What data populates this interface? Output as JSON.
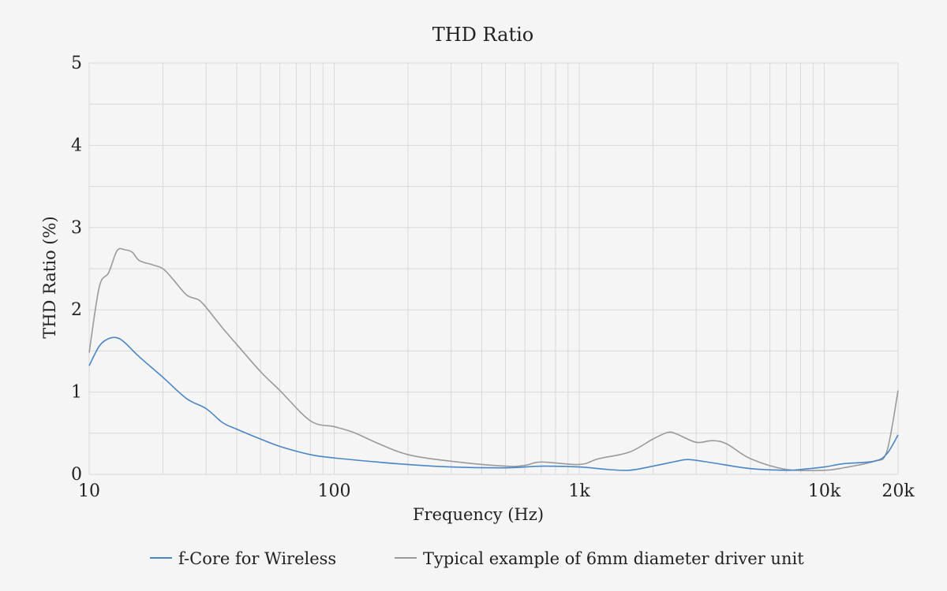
{
  "chart_data": {
    "type": "line",
    "title": "THD Ratio",
    "xlabel": "Frequency (Hz)",
    "ylabel": "THD Ratio (%)",
    "xscale": "log",
    "xlim": [
      10,
      20000
    ],
    "ylim": [
      0,
      5
    ],
    "grid": true,
    "legend_position": "bottom",
    "x_ticks": [
      {
        "value": 10,
        "label": "10"
      },
      {
        "value": 100,
        "label": "100"
      },
      {
        "value": 1000,
        "label": "1k"
      },
      {
        "value": 10000,
        "label": "10k"
      },
      {
        "value": 20000,
        "label": "20k"
      }
    ],
    "y_ticks": [
      {
        "value": 0,
        "label": "0"
      },
      {
        "value": 1,
        "label": "1"
      },
      {
        "value": 2,
        "label": "2"
      },
      {
        "value": 3,
        "label": "3"
      },
      {
        "value": 4,
        "label": "4"
      },
      {
        "value": 5,
        "label": "5"
      }
    ],
    "series": [
      {
        "name": "f-Core for Wireless",
        "color": "#4a86c5",
        "x": [
          10,
          11,
          12,
          13,
          14,
          16,
          20,
          25,
          30,
          35,
          40,
          50,
          60,
          80,
          100,
          150,
          200,
          300,
          500,
          700,
          1000,
          1300,
          1600,
          2000,
          2500,
          2800,
          3500,
          5000,
          7000,
          8000,
          10000,
          12000,
          16000,
          18000,
          20000
        ],
        "values": [
          1.32,
          1.56,
          1.65,
          1.66,
          1.6,
          1.43,
          1.18,
          0.92,
          0.8,
          0.63,
          0.55,
          0.43,
          0.34,
          0.24,
          0.2,
          0.15,
          0.12,
          0.09,
          0.08,
          0.1,
          0.09,
          0.06,
          0.05,
          0.1,
          0.16,
          0.18,
          0.14,
          0.07,
          0.05,
          0.06,
          0.09,
          0.13,
          0.16,
          0.25,
          0.48
        ]
      },
      {
        "name": "Typical example of 6mm diameter driver unit",
        "color": "#9a9a9a",
        "x": [
          10,
          11,
          12,
          13,
          14,
          15,
          16,
          18,
          20,
          22,
          25,
          28,
          30,
          35,
          40,
          50,
          60,
          80,
          100,
          120,
          150,
          200,
          300,
          500,
          600,
          700,
          1000,
          1200,
          1600,
          2000,
          2300,
          2500,
          3000,
          3500,
          4000,
          5000,
          7000,
          10000,
          12000,
          16000,
          18000,
          20000
        ],
        "values": [
          1.48,
          2.28,
          2.45,
          2.72,
          2.73,
          2.7,
          2.6,
          2.55,
          2.5,
          2.37,
          2.18,
          2.12,
          2.03,
          1.78,
          1.58,
          1.25,
          1.02,
          0.65,
          0.58,
          0.51,
          0.38,
          0.24,
          0.16,
          0.1,
          0.11,
          0.15,
          0.12,
          0.19,
          0.27,
          0.43,
          0.51,
          0.49,
          0.39,
          0.41,
          0.37,
          0.19,
          0.06,
          0.05,
          0.08,
          0.16,
          0.28,
          1.02
        ]
      }
    ]
  }
}
